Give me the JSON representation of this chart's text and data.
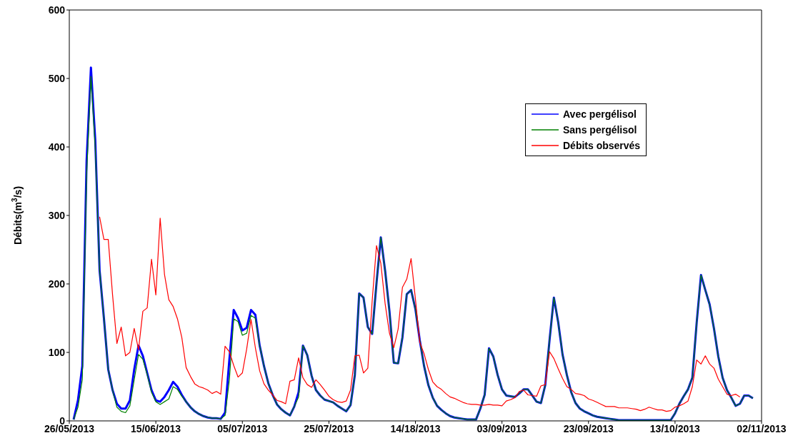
{
  "chart_data": {
    "type": "line",
    "ylabel": "Débits(m$^{3}$/s)",
    "categories": [
      "26/05/2013",
      null,
      null,
      null,
      null,
      null,
      null,
      null,
      null,
      null,
      null,
      null,
      null,
      null,
      null,
      null,
      null,
      null,
      null,
      null,
      "15/06/2013",
      null,
      null,
      null,
      null,
      null,
      null,
      null,
      null,
      null,
      null,
      null,
      null,
      null,
      null,
      null,
      null,
      null,
      null,
      null,
      "05/07/2013",
      null,
      null,
      null,
      null,
      null,
      null,
      null,
      null,
      null,
      null,
      null,
      null,
      null,
      null,
      null,
      null,
      null,
      null,
      null,
      "25/07/2013",
      null,
      null,
      null,
      null,
      null,
      null,
      null,
      null,
      null,
      null,
      null,
      null,
      null,
      null,
      null,
      null,
      null,
      null,
      null,
      "14/18/2013",
      null,
      null,
      null,
      null,
      null,
      null,
      null,
      null,
      null,
      null,
      null,
      null,
      null,
      null,
      null,
      null,
      null,
      null,
      null,
      "03/09/2013",
      null,
      null,
      null,
      null,
      null,
      null,
      null,
      null,
      null,
      null,
      null,
      null,
      null,
      null,
      null,
      null,
      null,
      null,
      null,
      "23/09/2013",
      null,
      null,
      null,
      null,
      null,
      null,
      null,
      null,
      null,
      null,
      null,
      null,
      null,
      null,
      null,
      null,
      null,
      null,
      null,
      "13/10/2013",
      null,
      null,
      null,
      null,
      null,
      null,
      null,
      null,
      null,
      null,
      null,
      null,
      null,
      null,
      null,
      null,
      null,
      null,
      null,
      "02/11/2013"
    ],
    "ylim": [
      0,
      600
    ],
    "yticks": [
      0,
      100,
      200,
      300,
      400,
      500,
      600
    ],
    "legend": "top right",
    "series": [
      {
        "name": "Avec pergélisol",
        "color": "#0000ff",
        "values": [
          null,
          2,
          30,
          80,
          380,
          516,
          410,
          220,
          150,
          75,
          45,
          25,
          18,
          18,
          30,
          75,
          110,
          95,
          70,
          45,
          30,
          28,
          35,
          45,
          57,
          50,
          38,
          28,
          20,
          14,
          10,
          7,
          5,
          4,
          4,
          3,
          12,
          90,
          162,
          150,
          132,
          136,
          162,
          155,
          110,
          80,
          55,
          38,
          24,
          17,
          12,
          8,
          21,
          42,
          110,
          96,
          66,
          45,
          37,
          31,
          29,
          27,
          22,
          18,
          14,
          23,
          67,
          186,
          180,
          137,
          127,
          201,
          268,
          219,
          160,
          85,
          84,
          122,
          185,
          191,
          163,
          118,
          80,
          52,
          34,
          22,
          16,
          11,
          7,
          5,
          4,
          3,
          2,
          2,
          2,
          18,
          38,
          106,
          94,
          67,
          46,
          37,
          36,
          35,
          40,
          46,
          46,
          37,
          28,
          26,
          52,
          118,
          180,
          144,
          97,
          67,
          42,
          26,
          18,
          14,
          11,
          8,
          6,
          5,
          4,
          3,
          2,
          1,
          1,
          1,
          1,
          1,
          1,
          1,
          1,
          1,
          1,
          1,
          1,
          1,
          11,
          25,
          36,
          46,
          63,
          143,
          213,
          191,
          170,
          135,
          94,
          63,
          45,
          34,
          22,
          25,
          37,
          37,
          33,
          null,
          null
        ]
      },
      {
        "name": "Sans pergélisol",
        "color": "#008000",
        "values": [
          null,
          2,
          20,
          60,
          360,
          503,
          400,
          220,
          150,
          75,
          45,
          20,
          14,
          12,
          22,
          60,
          97,
          90,
          68,
          42,
          28,
          24,
          28,
          32,
          50,
          46,
          36,
          28,
          20,
          14,
          10,
          7,
          5,
          4,
          4,
          3,
          8,
          60,
          149,
          145,
          125,
          128,
          154,
          150,
          110,
          80,
          55,
          38,
          24,
          17,
          12,
          8,
          21,
          35,
          110,
          96,
          66,
          45,
          37,
          31,
          29,
          27,
          22,
          18,
          14,
          23,
          67,
          186,
          180,
          137,
          127,
          201,
          268,
          219,
          160,
          85,
          84,
          122,
          185,
          191,
          163,
          118,
          80,
          52,
          34,
          22,
          16,
          11,
          7,
          5,
          4,
          3,
          2,
          2,
          2,
          18,
          38,
          106,
          94,
          67,
          46,
          37,
          36,
          35,
          40,
          46,
          46,
          37,
          28,
          26,
          52,
          118,
          180,
          144,
          97,
          67,
          42,
          26,
          18,
          14,
          11,
          8,
          6,
          5,
          4,
          3,
          2,
          1,
          1,
          1,
          1,
          1,
          1,
          1,
          1,
          1,
          1,
          1,
          1,
          1,
          11,
          25,
          36,
          46,
          63,
          143,
          213,
          191,
          170,
          135,
          94,
          63,
          45,
          34,
          22,
          25,
          37,
          37,
          33,
          null,
          null
        ]
      },
      {
        "name": "Débits observés",
        "color": "#ff0000",
        "values": [
          null,
          null,
          null,
          null,
          null,
          null,
          null,
          298,
          265,
          265,
          184,
          113,
          137,
          95,
          100,
          135,
          104,
          160,
          165,
          236,
          184,
          296,
          214,
          177,
          167,
          149,
          122,
          78,
          65,
          54,
          50,
          48,
          45,
          40,
          43,
          39,
          109,
          101,
          81,
          64,
          70,
          105,
          148,
          107,
          73,
          54,
          45,
          38,
          30,
          28,
          25,
          58,
          60,
          92,
          63,
          53,
          49,
          60,
          53,
          45,
          36,
          31,
          28,
          27,
          29,
          45,
          95,
          96,
          70,
          77,
          175,
          256,
          230,
          171,
          128,
          107,
          134,
          195,
          207,
          237,
          178,
          115,
          98,
          75,
          57,
          50,
          46,
          40,
          35,
          33,
          30,
          27,
          25,
          24,
          24,
          23,
          23,
          24,
          23,
          23,
          22,
          29,
          31,
          34,
          43,
          45,
          38,
          37,
          36,
          51,
          53,
          101,
          91,
          76,
          62,
          50,
          46,
          40,
          39,
          37,
          32,
          30,
          27,
          24,
          21,
          21,
          21,
          19,
          19,
          19,
          18,
          17,
          15,
          17,
          20,
          18,
          16,
          16,
          14,
          15,
          20,
          22,
          25,
          29,
          50,
          89,
          83,
          95,
          83,
          77,
          61,
          50,
          39,
          37,
          39,
          35,
          null,
          null,
          null,
          null,
          null
        ]
      }
    ]
  }
}
